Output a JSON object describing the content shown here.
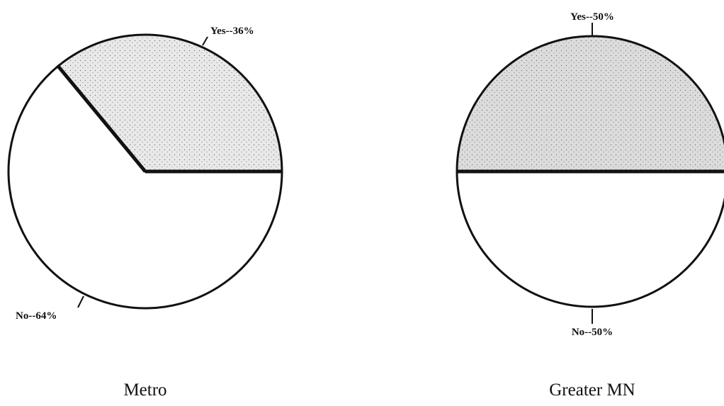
{
  "chart_data": [
    {
      "type": "pie",
      "title": "Metro",
      "slices": [
        {
          "label": "Yes--36%",
          "value": 36,
          "fill": "#e9e9e9"
        },
        {
          "label": "No--64%",
          "value": 64,
          "fill": "#ffffff"
        }
      ]
    },
    {
      "type": "pie",
      "title": "Greater MN",
      "slices": [
        {
          "label": "Yes--50%",
          "value": 50,
          "fill": "#dcdcdc"
        },
        {
          "label": "No--50%",
          "value": 50,
          "fill": "#ffffff"
        }
      ]
    }
  ]
}
